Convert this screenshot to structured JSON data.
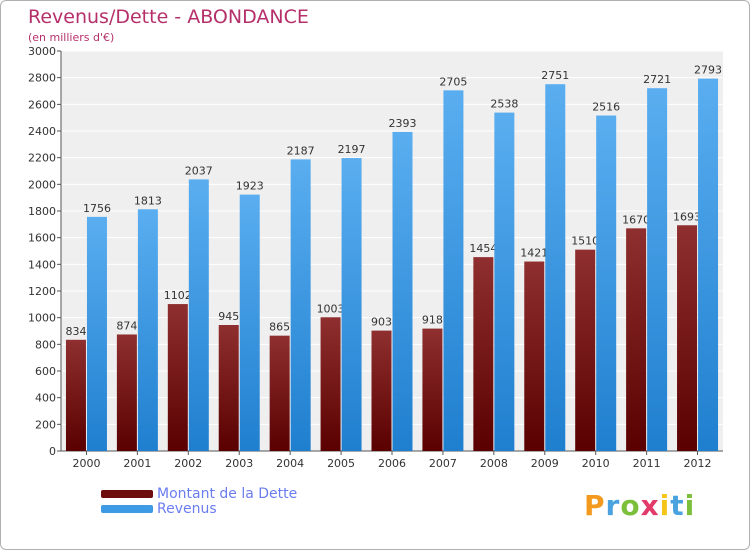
{
  "chart_data": {
    "type": "bar",
    "title": "Revenus/Dette - ABONDANCE",
    "subtitle": "(en milliers d'€)",
    "categories": [
      "2000",
      "2001",
      "2002",
      "2003",
      "2004",
      "2005",
      "2006",
      "2007",
      "2008",
      "2009",
      "2010",
      "2011",
      "2012"
    ],
    "series": [
      {
        "name": "Montant de la Dette",
        "color": "#6e0d0d",
        "values": [
          834,
          874,
          1102,
          945,
          865,
          1003,
          903,
          918,
          1454,
          1421,
          1510,
          1670,
          1693
        ],
        "labels": [
          "834",
          "874",
          "1102",
          "945",
          "865",
          "1003",
          "903",
          "918",
          "1454",
          "1421",
          "1510",
          "1670",
          "1693"
        ]
      },
      {
        "name": "Revenus",
        "color": "#3d9be5",
        "values": [
          1756,
          1813,
          2037,
          1923,
          2187,
          2197,
          2393,
          2705,
          2538,
          2751,
          2516,
          2721,
          2793
        ],
        "labels": [
          "1756",
          "1813",
          "2037",
          "1923",
          "2187",
          "2197",
          "2393",
          "2705",
          "2538",
          "2751",
          "2516",
          "2721",
          "2793"
        ]
      }
    ],
    "ylim": [
      0,
      3000
    ],
    "yticks": [
      "0",
      "200",
      "400",
      "600",
      "800",
      "1000",
      "1200",
      "1400",
      "1600",
      "1800",
      "2000",
      "2200",
      "2400",
      "2600",
      "2800",
      "3000"
    ],
    "ytick_values": [
      0,
      200,
      400,
      600,
      800,
      1000,
      1200,
      1400,
      1600,
      1800,
      2000,
      2200,
      2400,
      2600,
      2800,
      3000
    ],
    "grid": true,
    "legend": "bottom-left"
  },
  "logo": {
    "letters": [
      "P",
      "r",
      "o",
      "x",
      "i",
      "t",
      "i"
    ],
    "colors": [
      "#f39a1e",
      "#4aa3df",
      "#7cbf3a",
      "#e23b6a",
      "#f5c518",
      "#4aa3df",
      "#7cbf3a"
    ]
  }
}
